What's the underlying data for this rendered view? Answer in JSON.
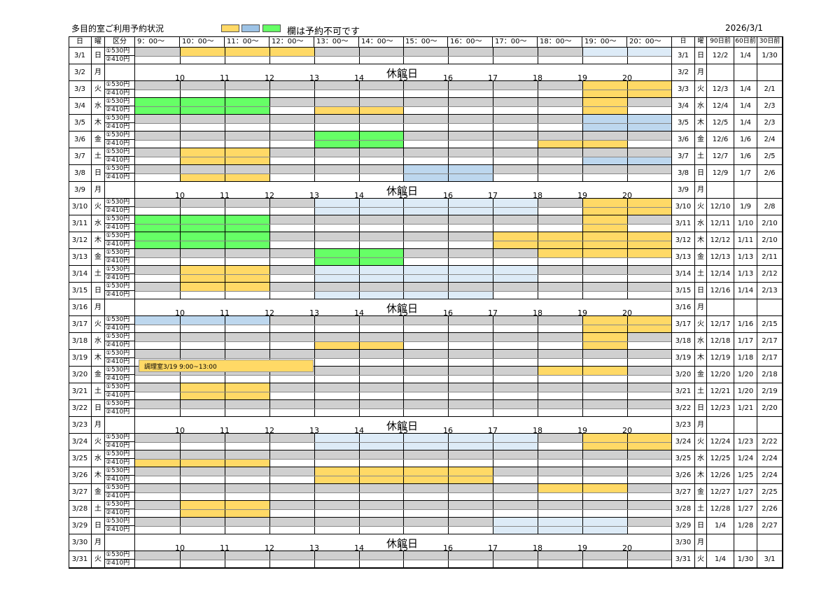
{
  "header": {
    "title": "多目的室ご利用予約状況",
    "legend_text": "欄は予約不可です",
    "date": "2026/3/1",
    "legend_colors": [
      "#ffd966",
      "#9dc3e6",
      "#66ff66"
    ]
  },
  "colors": {
    "yellow": "#ffd966",
    "blue": "#bdd7ee",
    "lightblue": "#ddebf7",
    "green": "#66ff66",
    "gray": "#d0d0d0"
  },
  "columns": {
    "day": "日",
    "weekday": "曜",
    "category": "区分",
    "times": [
      "9：00〜",
      "10：00〜",
      "11：00〜",
      "12：00〜",
      "13：00〜",
      "14：00〜",
      "15：00〜",
      "16：00〜",
      "17：00〜",
      "18：00〜",
      "19：00〜",
      "20：00〜"
    ],
    "right_day": "日",
    "right_weekday": "曜",
    "d90": "90日前",
    "d60": "60日前",
    "d30": "30日前"
  },
  "closed_label": "休館日",
  "hour_numbers": [
    "10",
    "11",
    "12",
    "13",
    "14",
    "15",
    "16",
    "17",
    "18",
    "19",
    "20"
  ],
  "price_rows": [
    "①530円",
    "②410円"
  ],
  "note": {
    "text": "調理室3/19 9:00~13:00",
    "row": 18
  },
  "rows": [
    {
      "date": "3/1",
      "wd": "日",
      "d90": "12/2",
      "d60": "1/4",
      "d30": "1/30",
      "bk": [
        [
          1,
          4,
          "yellow",
          "top"
        ],
        [
          10,
          12,
          "lightblue",
          "top"
        ]
      ]
    },
    {
      "date": "3/2",
      "wd": "月",
      "closed": true
    },
    {
      "date": "3/3",
      "wd": "火",
      "d90": "12/3",
      "d60": "1/4",
      "d30": "2/1",
      "bk": [
        [
          10,
          12,
          "yellow",
          "full"
        ]
      ]
    },
    {
      "date": "3/4",
      "wd": "水",
      "d90": "12/4",
      "d60": "1/4",
      "d30": "2/3",
      "bk": [
        [
          0,
          3,
          "green",
          "full"
        ],
        [
          4,
          6,
          "yellow",
          "bottom"
        ],
        [
          10,
          11,
          "yellow",
          "full"
        ]
      ]
    },
    {
      "date": "3/5",
      "wd": "木",
      "d90": "12/5",
      "d60": "1/4",
      "d30": "2/3",
      "bk": [
        [
          10,
          12,
          "blue",
          "full"
        ]
      ]
    },
    {
      "date": "3/6",
      "wd": "金",
      "d90": "12/6",
      "d60": "1/6",
      "d30": "2/4",
      "bk": [
        [
          4,
          6,
          "green",
          "full"
        ],
        [
          9,
          11,
          "yellow",
          "bottom"
        ]
      ]
    },
    {
      "date": "3/7",
      "wd": "土",
      "d90": "12/7",
      "d60": "1/6",
      "d30": "2/5",
      "bk": [
        [
          1,
          3,
          "yellow",
          "full"
        ],
        [
          10,
          12,
          "blue",
          "bottom"
        ]
      ]
    },
    {
      "date": "3/8",
      "wd": "日",
      "d90": "12/9",
      "d60": "1/7",
      "d30": "2/6",
      "bk": [
        [
          1,
          3,
          "yellow",
          "bottom"
        ],
        [
          6,
          8,
          "blue",
          "full"
        ]
      ]
    },
    {
      "date": "3/9",
      "wd": "月",
      "closed": true
    },
    {
      "date": "3/10",
      "wd": "火",
      "d90": "12/10",
      "d60": "1/9",
      "d30": "2/8",
      "bk": [
        [
          4,
          9,
          "lightblue",
          "full"
        ],
        [
          10,
          12,
          "yellow",
          "full"
        ]
      ]
    },
    {
      "date": "3/11",
      "wd": "水",
      "d90": "12/11",
      "d60": "1/10",
      "d30": "2/10",
      "bk": [
        [
          0,
          3,
          "green",
          "full"
        ],
        [
          10,
          11,
          "yellow",
          "full"
        ]
      ]
    },
    {
      "date": "3/12",
      "wd": "木",
      "d90": "12/12",
      "d60": "1/11",
      "d30": "2/10",
      "bk": [
        [
          0,
          3,
          "green",
          "full"
        ],
        [
          8,
          12,
          "yellow",
          "full"
        ]
      ]
    },
    {
      "date": "3/13",
      "wd": "金",
      "d90": "12/13",
      "d60": "1/13",
      "d30": "2/11",
      "bk": [
        [
          4,
          6,
          "green",
          "full"
        ],
        [
          9,
          12,
          "yellow",
          "top"
        ]
      ]
    },
    {
      "date": "3/14",
      "wd": "土",
      "d90": "12/14",
      "d60": "1/13",
      "d30": "2/12",
      "bk": [
        [
          1,
          3,
          "yellow",
          "full"
        ],
        [
          4,
          9,
          "lightblue",
          "full"
        ]
      ]
    },
    {
      "date": "3/15",
      "wd": "日",
      "d90": "12/16",
      "d60": "1/14",
      "d30": "2/13",
      "bk": [
        [
          1,
          3,
          "yellow",
          "top"
        ],
        [
          4,
          8,
          "lightblue",
          "bottom"
        ]
      ]
    },
    {
      "date": "3/16",
      "wd": "月",
      "closed": true
    },
    {
      "date": "3/17",
      "wd": "火",
      "d90": "12/17",
      "d60": "1/16",
      "d30": "2/15",
      "bk": [
        [
          0,
          3,
          "blue",
          "top"
        ],
        [
          10,
          12,
          "yellow",
          "full"
        ]
      ]
    },
    {
      "date": "3/18",
      "wd": "水",
      "d90": "12/18",
      "d60": "1/17",
      "d30": "2/17",
      "bk": [
        [
          4,
          6,
          "yellow",
          "bottom"
        ],
        [
          10,
          11,
          "yellow",
          "full"
        ]
      ]
    },
    {
      "date": "3/19",
      "wd": "木",
      "d90": "12/19",
      "d60": "1/18",
      "d30": "2/17",
      "bk": []
    },
    {
      "date": "3/20",
      "wd": "金",
      "d90": "12/20",
      "d60": "1/20",
      "d30": "2/18",
      "bk": [
        [
          9,
          11,
          "yellow",
          "top"
        ]
      ]
    },
    {
      "date": "3/21",
      "wd": "土",
      "d90": "12/21",
      "d60": "1/20",
      "d30": "2/19",
      "bk": [
        [
          1,
          3,
          "yellow",
          "full"
        ]
      ]
    },
    {
      "date": "3/22",
      "wd": "日",
      "d90": "12/23",
      "d60": "1/21",
      "d30": "2/20",
      "bk": []
    },
    {
      "date": "3/23",
      "wd": "月",
      "closed": true
    },
    {
      "date": "3/24",
      "wd": "火",
      "d90": "12/24",
      "d60": "1/23",
      "d30": "2/22",
      "bk": [
        [
          4,
          9,
          "lightblue",
          "full"
        ],
        [
          10,
          12,
          "yellow",
          "full"
        ]
      ]
    },
    {
      "date": "3/25",
      "wd": "水",
      "d90": "12/25",
      "d60": "1/24",
      "d30": "2/24",
      "bk": [
        [
          0,
          3,
          "yellow",
          "bottom"
        ]
      ]
    },
    {
      "date": "3/26",
      "wd": "木",
      "d90": "12/26",
      "d60": "1/25",
      "d30": "2/24",
      "bk": [
        [
          4,
          8,
          "yellow",
          "full"
        ]
      ]
    },
    {
      "date": "3/27",
      "wd": "金",
      "d90": "12/27",
      "d60": "1/27",
      "d30": "2/25",
      "bk": [
        [
          9,
          11,
          "yellow",
          "top"
        ]
      ]
    },
    {
      "date": "3/28",
      "wd": "土",
      "d90": "12/28",
      "d60": "1/27",
      "d30": "2/26",
      "bk": [
        [
          1,
          3,
          "yellow",
          "full"
        ]
      ]
    },
    {
      "date": "3/29",
      "wd": "日",
      "d90": "1/4",
      "d60": "1/28",
      "d30": "2/27",
      "bk": [
        [
          8,
          11,
          "lightblue",
          "full"
        ]
      ]
    },
    {
      "date": "3/30",
      "wd": "月",
      "closed": true
    },
    {
      "date": "3/31",
      "wd": "火",
      "d90": "1/4",
      "d60": "1/30",
      "d30": "3/1",
      "bk": []
    }
  ]
}
